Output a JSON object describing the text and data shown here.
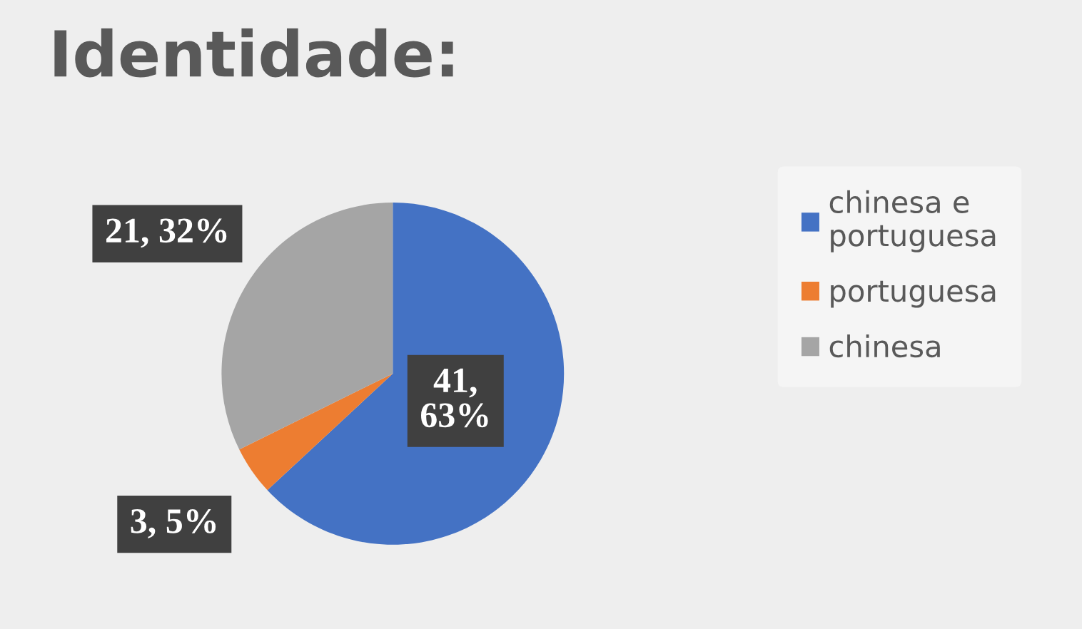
{
  "chart_data": {
    "type": "pie",
    "title": "Identidade:",
    "categories": [
      "chinesa e portuguesa",
      "portuguesa",
      "chinesa"
    ],
    "values": [
      41,
      3,
      21
    ],
    "colors": [
      "#4472c4",
      "#ed7d31",
      "#a5a5a5"
    ],
    "value_labels": [
      "41, 63%",
      "3, 5%",
      "21, 32%"
    ],
    "legend": "right"
  }
}
